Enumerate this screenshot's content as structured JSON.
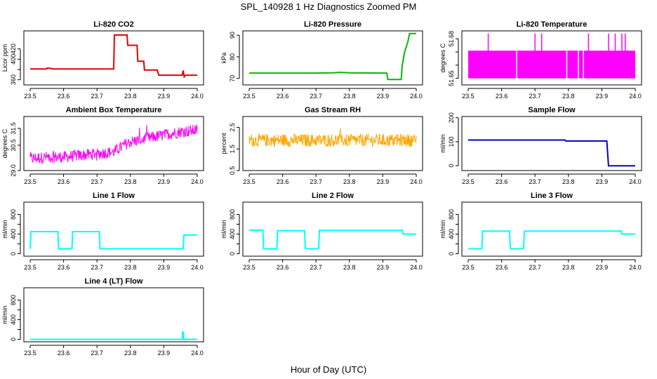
{
  "figure": {
    "title": "SPL_140928  1 Hz Diagnostics Zoomed PM",
    "xlabel": "Hour of Day (UTC)"
  },
  "chart_data": [
    {
      "type": "line",
      "title": "Li-820 CO2",
      "ylabel": "Licor ppm",
      "color": "#e00000",
      "xlim": [
        23.5,
        24.0
      ],
      "ylim": [
        350,
        455
      ],
      "yticks": [
        360,
        380,
        400,
        420
      ],
      "yticklabels": [
        "360",
        "",
        "400",
        "420"
      ],
      "x": [
        23.5,
        23.548,
        23.552,
        23.56,
        23.57,
        23.6,
        23.65,
        23.75,
        23.752,
        23.79,
        23.792,
        23.82,
        23.822,
        23.84,
        23.842,
        23.88,
        23.885,
        23.94,
        23.955,
        23.958,
        23.961,
        23.965,
        24.0
      ],
      "y": [
        381,
        381,
        383,
        382,
        381,
        381,
        381,
        381,
        447,
        447,
        427,
        427,
        396,
        396,
        379,
        379,
        369,
        369,
        369,
        378,
        366,
        369,
        369
      ]
    },
    {
      "type": "line",
      "title": "Li-820 Pressure",
      "ylabel": "kPa",
      "color": "#00bb00",
      "xlim": [
        23.5,
        24.0
      ],
      "ylim": [
        67,
        92
      ],
      "yticks": [
        70,
        80,
        90
      ],
      "yticklabels": [
        "70",
        "80",
        "90"
      ],
      "x": [
        23.5,
        23.7,
        23.75,
        23.77,
        23.8,
        23.9,
        23.912,
        23.915,
        23.955,
        23.958,
        23.965,
        23.975,
        23.98,
        24.0
      ],
      "y": [
        72.5,
        72.5,
        72.6,
        72.8,
        72.6,
        72.5,
        72.5,
        69.5,
        69.5,
        76,
        82,
        87,
        90.8,
        90.8
      ]
    },
    {
      "type": "line",
      "title": "Li-820 Temperature",
      "ylabel": "degrees C",
      "color": "#ff00ff",
      "xlim": [
        23.5,
        24.0
      ],
      "ylim": [
        51.645,
        51.686
      ],
      "yticks": [
        51.65,
        51.66,
        51.67,
        51.68
      ],
      "yticklabels": [
        "51.65",
        "",
        "",
        "51.68"
      ],
      "band": [
        51.65,
        51.671
      ],
      "spike_top": 51.684,
      "spikes": [
        23.56,
        23.7,
        23.72,
        23.86,
        23.92,
        23.94,
        23.96,
        23.97
      ],
      "gaps": [
        23.645,
        23.795,
        23.83,
        23.845
      ]
    },
    {
      "type": "line",
      "title": "Ambient Box Temperature",
      "ylabel": "degrees C",
      "color": "#ff00ff",
      "xlim": [
        23.5,
        24.0
      ],
      "ylim": [
        29.0,
        32.2
      ],
      "yticks": [
        29.0,
        30.5,
        31.5
      ],
      "yticklabels": [
        "29.0",
        "30.5",
        "31.5"
      ],
      "x": [
        23.5,
        23.55,
        23.6,
        23.65,
        23.7,
        23.75,
        23.78,
        23.8,
        23.85,
        23.9,
        23.95,
        24.0
      ],
      "y": [
        29.7,
        29.8,
        29.8,
        29.9,
        30.0,
        30.1,
        30.5,
        30.7,
        30.9,
        31.1,
        31.3,
        31.4
      ],
      "noise": 0.35
    },
    {
      "type": "line",
      "title": "Gas Stream RH",
      "ylabel": "percent",
      "color": "#ffa500",
      "xlim": [
        23.5,
        24.0
      ],
      "ylim": [
        0.5,
        3.0
      ],
      "yticks": [
        0.5,
        1.5,
        2.5
      ],
      "yticklabels": [
        "0.5",
        "1.5",
        "2.5"
      ],
      "x": [
        23.5,
        24.0
      ],
      "y": [
        1.9,
        1.9
      ],
      "noise": 0.3
    },
    {
      "type": "line",
      "title": "Sample Flow",
      "ylabel": "ml/min",
      "color": "#0000cc",
      "xlim": [
        23.5,
        24.0
      ],
      "ylim": [
        -20,
        205
      ],
      "yticks": [
        0,
        100,
        200
      ],
      "yticklabels": [
        "0",
        "100",
        "200"
      ],
      "x": [
        23.5,
        23.79,
        23.792,
        23.915,
        23.92,
        24.0
      ],
      "y": [
        107,
        107,
        103,
        103,
        0,
        0
      ]
    },
    {
      "type": "line",
      "title": "Line 1 Flow",
      "ylabel": "ml/min",
      "color": "#00ffff",
      "xlim": [
        23.5,
        24.0
      ],
      "ylim": [
        -50,
        1050
      ],
      "yticks": [
        0,
        200,
        400,
        600,
        800
      ],
      "yticklabels": [
        "0",
        "",
        "400",
        "",
        "800"
      ],
      "x": [
        23.5,
        23.502,
        23.583,
        23.585,
        23.625,
        23.627,
        23.707,
        23.709,
        23.958,
        23.96,
        24.0
      ],
      "y": [
        100,
        450,
        450,
        100,
        100,
        450,
        450,
        100,
        100,
        380,
        380
      ]
    },
    {
      "type": "line",
      "title": "Line 2 Flow",
      "ylabel": "ml/min",
      "color": "#00ffff",
      "xlim": [
        23.5,
        24.0
      ],
      "ylim": [
        -50,
        1050
      ],
      "yticks": [
        0,
        200,
        400,
        600,
        800
      ],
      "yticklabels": [
        "0",
        "",
        "400",
        "",
        "800"
      ],
      "x": [
        23.5,
        23.541,
        23.543,
        23.583,
        23.585,
        23.666,
        23.668,
        23.708,
        23.71,
        23.958,
        23.96,
        24.0
      ],
      "y": [
        480,
        480,
        100,
        100,
        470,
        470,
        100,
        100,
        475,
        475,
        400,
        400
      ]
    },
    {
      "type": "line",
      "title": "Line 3 Flow",
      "ylabel": "ml/min",
      "color": "#00ffff",
      "xlim": [
        23.5,
        24.0
      ],
      "ylim": [
        -50,
        1050
      ],
      "yticks": [
        0,
        200,
        400,
        600,
        800
      ],
      "yticklabels": [
        "0",
        "",
        "400",
        "",
        "800"
      ],
      "x": [
        23.5,
        23.502,
        23.541,
        23.543,
        23.624,
        23.626,
        23.666,
        23.668,
        23.958,
        23.96,
        24.0
      ],
      "y": [
        100,
        100,
        100,
        460,
        460,
        100,
        100,
        460,
        460,
        400,
        400
      ]
    },
    {
      "type": "line",
      "title": "Line 4 (LT) Flow",
      "ylabel": "ml/min",
      "color": "#00ffff",
      "xlim": [
        23.5,
        24.0
      ],
      "ylim": [
        -50,
        1050
      ],
      "yticks": [
        0,
        200,
        400,
        600,
        800
      ],
      "yticklabels": [
        "0",
        "",
        "400",
        "",
        "800"
      ],
      "x": [
        23.5,
        23.955,
        23.956,
        23.958,
        23.96,
        24.0
      ],
      "y": [
        0,
        0,
        150,
        150,
        0,
        0
      ]
    }
  ],
  "xticks": [
    23.5,
    23.6,
    23.7,
    23.8,
    23.9,
    24.0
  ],
  "xticklabels": [
    "23.5",
    "23.6",
    "23.7",
    "23.8",
    "23.9",
    "24.0"
  ]
}
